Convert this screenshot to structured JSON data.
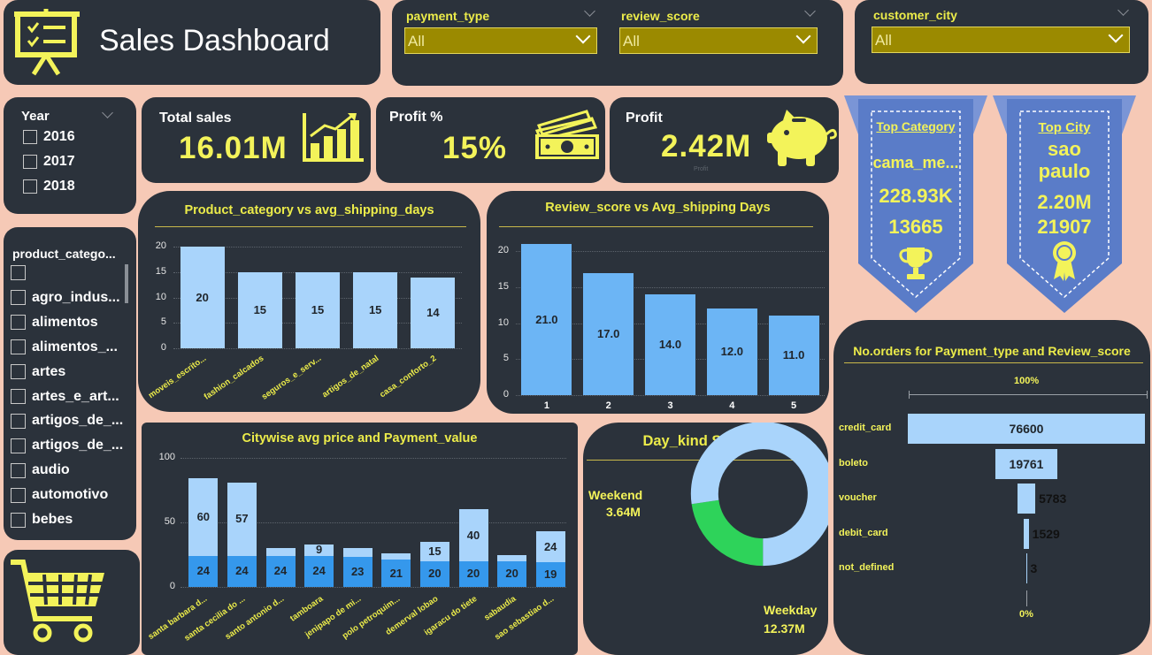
{
  "header": {
    "title": "Sales Dashboard",
    "icon": "presentation-board-icon"
  },
  "filters": {
    "payment_type": {
      "label": "payment_type",
      "value": "All"
    },
    "review_score": {
      "label": "review_score",
      "value": "All"
    },
    "customer_city": {
      "label": "customer_city",
      "value": "All"
    }
  },
  "year_slicer": {
    "label": "Year",
    "options": [
      "2016",
      "2017",
      "2018"
    ]
  },
  "category_slicer": {
    "label": "product_catego...",
    "options": [
      "",
      "agro_indus...",
      "alimentos",
      "alimentos_...",
      "artes",
      "artes_e_art...",
      "artigos_de_...",
      "artigos_de_...",
      "audio",
      "automotivo",
      "bebes"
    ]
  },
  "kpis": {
    "total_sales": {
      "label": "Total sales",
      "value": "16.01M",
      "icon": "growth-chart-icon"
    },
    "profit_pct": {
      "label": "Profit %",
      "value": "15%",
      "icon": "cash-stack-icon"
    },
    "profit": {
      "label": "Profit",
      "value": "2.42M",
      "caption": "Profit",
      "icon": "piggy-bank-icon"
    }
  },
  "top_category": {
    "title": "Top Category",
    "name": "cama_me...",
    "sales": "228.93K",
    "orders": "13665",
    "icon": "trophy-icon"
  },
  "top_city": {
    "title": "Top City",
    "name_line1": "sao",
    "name_line2": "paulo",
    "sales": "2.20M",
    "orders": "21907",
    "icon": "award-ribbon-icon"
  },
  "colors": {
    "panel": "#2b323b",
    "page": "#f6c9b6",
    "accent": "#ecec4a",
    "bar_light": "#a9d4fb",
    "bar_mid": "#6cb5f5",
    "bar_dark": "#3598ec",
    "green": "#2ed35a",
    "ribbon": "#5a7cc8"
  },
  "charts": {
    "product_category": {
      "title": "Product_category vs avg_shipping_days",
      "ylim": [
        0,
        20
      ],
      "y_ticks": [
        "0",
        "5",
        "10",
        "15",
        "20"
      ],
      "categories": [
        "moveis_escrito...",
        "fashion_calcados",
        "seguros_e_serv...",
        "artigos_de_natal",
        "casa_conforto_2"
      ],
      "values": [
        20,
        15,
        15,
        15,
        14
      ],
      "labels": [
        "20",
        "15",
        "15",
        "15",
        "14"
      ]
    },
    "review_score": {
      "title": "Review_score vs Avg_shipping Days",
      "ylim": [
        0,
        21
      ],
      "y_ticks": [
        "0",
        "5",
        "10",
        "15",
        "20"
      ],
      "categories": [
        "1",
        "2",
        "3",
        "4",
        "5"
      ],
      "values": [
        21.0,
        17.0,
        14.0,
        12.0,
        11.0
      ],
      "labels": [
        "21.0",
        "17.0",
        "14.0",
        "12.0",
        "11.0"
      ]
    },
    "citywise": {
      "title": "Citywise avg price and Payment_value",
      "ylim": [
        0,
        100
      ],
      "y_ticks": [
        "0",
        "50",
        "100"
      ],
      "categories": [
        "santa barbara d...",
        "santa cecilia do ...",
        "santo antonio d...",
        "tamboara",
        "jenipapo de mi...",
        "polo petroquim...",
        "demerval lobao",
        "igaracu do tiete",
        "sabaudia",
        "sao sebastiao d..."
      ],
      "series": [
        {
          "name": "avg price",
          "values": [
            24,
            24,
            24,
            24,
            23,
            21,
            20,
            20,
            20,
            19
          ]
        },
        {
          "name": "Payment_value",
          "values": [
            60,
            57,
            6,
            9,
            7,
            5,
            15,
            40,
            5,
            24
          ]
        }
      ],
      "top_labels": [
        "60",
        "57",
        "",
        "9",
        "",
        "",
        "15",
        "40",
        "",
        "24"
      ],
      "bottom_labels": [
        "24",
        "24",
        "24",
        "24",
        "23",
        "21",
        "20",
        "20",
        "20",
        "19"
      ]
    },
    "day_kind": {
      "title": "Day_kind Sales",
      "slices": [
        {
          "name": "Weekend",
          "value": 3.64,
          "label": "3.64M"
        },
        {
          "name": "Weekday",
          "value": 12.37,
          "label": "12.37M"
        }
      ]
    },
    "orders_funnel": {
      "title": "No.orders for Payment_type and Review_score",
      "top_pct": "100%",
      "bottom_pct": "0%",
      "categories": [
        "credit_card",
        "boleto",
        "voucher",
        "debit_card",
        "not_defined"
      ],
      "values": [
        76600,
        19761,
        5783,
        1529,
        3
      ],
      "labels": [
        "76600",
        "19761",
        "5783",
        "1529",
        "3"
      ]
    }
  },
  "chart_data": [
    {
      "type": "bar",
      "title": "Product_category vs avg_shipping_days",
      "categories": [
        "moveis_escrito...",
        "fashion_calcados",
        "seguros_e_serv...",
        "artigos_de_natal",
        "casa_conforto_2"
      ],
      "values": [
        20,
        15,
        15,
        15,
        14
      ],
      "ylim": [
        0,
        20
      ]
    },
    {
      "type": "bar",
      "title": "Review_score vs Avg_shipping Days",
      "categories": [
        "1",
        "2",
        "3",
        "4",
        "5"
      ],
      "values": [
        21.0,
        17.0,
        14.0,
        12.0,
        11.0
      ],
      "ylim": [
        0,
        21
      ]
    },
    {
      "type": "bar",
      "title": "Citywise avg price and Payment_value",
      "categories": [
        "santa barbara d...",
        "santa cecilia do ...",
        "santo antonio d...",
        "tamboara",
        "jenipapo de mi...",
        "polo petroquim...",
        "demerval lobao",
        "igaracu do tiete",
        "sabaudia",
        "sao sebastiao d..."
      ],
      "series": [
        {
          "name": "avg price",
          "values": [
            24,
            24,
            24,
            24,
            23,
            21,
            20,
            20,
            20,
            19
          ]
        },
        {
          "name": "Payment_value",
          "values": [
            60,
            57,
            6,
            9,
            7,
            5,
            15,
            40,
            5,
            24
          ]
        }
      ],
      "ylim": [
        0,
        100
      ]
    },
    {
      "type": "pie",
      "title": "Day_kind Sales",
      "categories": [
        "Weekend",
        "Weekday"
      ],
      "values": [
        3.64,
        12.37
      ]
    },
    {
      "type": "bar",
      "title": "No.orders for Payment_type and Review_score",
      "categories": [
        "credit_card",
        "boleto",
        "voucher",
        "debit_card",
        "not_defined"
      ],
      "values": [
        76600,
        19761,
        5783,
        1529,
        3
      ]
    }
  ],
  "footer": {
    "icon": "shopping-cart-icon"
  }
}
